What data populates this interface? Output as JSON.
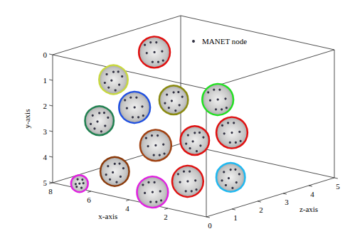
{
  "chart_data": {
    "type": "scatter",
    "x_label": "x-axis",
    "y_label": "y-axis",
    "z_label": "z-axis",
    "xlim": [
      0,
      8
    ],
    "xticks": [
      2,
      4,
      6,
      8
    ],
    "ylim": [
      0,
      5
    ],
    "yticks": [
      0,
      1,
      2,
      3,
      4,
      5
    ],
    "zlim": [
      0,
      5
    ],
    "zticks": [
      0,
      1,
      2,
      3,
      4,
      5
    ],
    "legend": "top",
    "series": [
      {
        "name": "MANET node",
        "color": "#333344",
        "marker": "circle",
        "clusters": [
          {
            "color": "#e01010",
            "z": 3,
            "center": [
              6.7,
              0.6
            ],
            "nodes": [
              [
                6.7,
                0.6
              ],
              [
                7.1,
                0.7
              ],
              [
                6.3,
                0.5
              ],
              [
                6.9,
                0.25
              ],
              [
                6.5,
                0.95
              ],
              [
                7.2,
                0.4
              ],
              [
                6.25,
                0.85
              ],
              [
                6.8,
                1.0
              ],
              [
                6.6,
                0.2
              ]
            ]
          },
          {
            "color": "#c8d840",
            "z": 2,
            "center": [
              7.5,
              1.5
            ],
            "nodes": [
              [
                7.6,
                1.55
              ],
              [
                7.2,
                1.65
              ],
              [
                7.85,
                1.35
              ],
              [
                7.5,
                1.2
              ],
              [
                7.4,
                1.9
              ],
              [
                7.95,
                1.7
              ],
              [
                7.05,
                1.3
              ],
              [
                7.75,
                1.85
              ],
              [
                7.25,
                1.15
              ]
            ]
          },
          {
            "color": "#2050e0",
            "z": 2,
            "center": [
              6.4,
              2.4
            ],
            "nodes": [
              [
                6.4,
                2.4
              ],
              [
                6.8,
                2.5
              ],
              [
                6.0,
                2.3
              ],
              [
                6.6,
                2.05
              ],
              [
                6.2,
                2.75
              ],
              [
                6.9,
                2.2
              ],
              [
                5.95,
                2.65
              ],
              [
                6.5,
                2.8
              ],
              [
                6.3,
                2.0
              ]
            ]
          },
          {
            "color": "#8a8a10",
            "z": 3,
            "center": [
              5.7,
              2.3
            ],
            "nodes": [
              [
                5.8,
                2.35
              ],
              [
                5.4,
                2.45
              ],
              [
                6.05,
                2.15
              ],
              [
                5.7,
                2.0
              ],
              [
                5.6,
                2.7
              ],
              [
                6.15,
                2.5
              ],
              [
                5.25,
                2.1
              ],
              [
                5.95,
                2.65
              ],
              [
                5.45,
                1.95
              ]
            ]
          },
          {
            "color": "#20e020",
            "z": 3,
            "center": [
              3.4,
              1.9
            ],
            "nodes": [
              [
                3.4,
                1.9
              ],
              [
                3.8,
                2.0
              ],
              [
                3.0,
                1.8
              ],
              [
                3.6,
                1.55
              ],
              [
                3.2,
                2.25
              ],
              [
                3.9,
                1.7
              ],
              [
                2.95,
                2.15
              ],
              [
                3.5,
                2.3
              ],
              [
                3.3,
                1.5
              ]
            ]
          },
          {
            "color": "#208050",
            "z": 1,
            "center": [
              6.9,
              2.7
            ],
            "nodes": [
              [
                7.0,
                2.75
              ],
              [
                6.6,
                2.85
              ],
              [
                7.25,
                2.55
              ],
              [
                6.9,
                2.4
              ],
              [
                6.8,
                3.1
              ],
              [
                7.35,
                2.9
              ],
              [
                6.45,
                2.5
              ],
              [
                7.15,
                3.05
              ],
              [
                6.65,
                2.35
              ]
            ]
          },
          {
            "color": "#a04010",
            "z": 2,
            "center": [
              5.3,
              3.7
            ],
            "nodes": [
              [
                5.3,
                3.7
              ],
              [
                5.7,
                3.8
              ],
              [
                4.9,
                3.6
              ],
              [
                5.5,
                3.35
              ],
              [
                5.1,
                4.05
              ],
              [
                5.8,
                3.5
              ],
              [
                4.85,
                3.95
              ],
              [
                5.4,
                4.1
              ],
              [
                5.2,
                3.3
              ]
            ]
          },
          {
            "color": "#e01010",
            "z": 3,
            "center": [
              4.6,
              3.7
            ],
            "nodes": [
              [
                4.7,
                3.75
              ],
              [
                4.3,
                3.85
              ],
              [
                4.95,
                3.55
              ],
              [
                4.6,
                3.4
              ],
              [
                4.5,
                4.1
              ],
              [
                5.05,
                3.9
              ],
              [
                4.15,
                3.5
              ],
              [
                4.85,
                4.05
              ],
              [
                4.35,
                3.35
              ]
            ]
          },
          {
            "color": "#e01010",
            "z": 4,
            "center": [
              4.0,
              3.6
            ],
            "nodes": [
              [
                4.0,
                3.6
              ],
              [
                4.4,
                3.7
              ],
              [
                3.6,
                3.5
              ],
              [
                4.2,
                3.25
              ],
              [
                3.8,
                3.95
              ],
              [
                4.5,
                3.4
              ],
              [
                3.55,
                3.85
              ],
              [
                4.1,
                4.0
              ],
              [
                3.9,
                3.2
              ]
            ]
          },
          {
            "color": "#8b3a0a",
            "z": 1,
            "center": [
              6.1,
              4.55
            ],
            "nodes": [
              [
                6.2,
                4.6
              ],
              [
                5.8,
                4.7
              ],
              [
                6.45,
                4.4
              ],
              [
                6.1,
                4.25
              ],
              [
                6.0,
                4.95
              ],
              [
                6.55,
                4.75
              ],
              [
                5.65,
                4.35
              ],
              [
                6.35,
                4.9
              ],
              [
                5.85,
                4.2
              ]
            ]
          },
          {
            "color": "#e01010",
            "z": 1,
            "center": [
              2.3,
              4.3
            ],
            "nodes": [
              [
                2.3,
                4.3
              ],
              [
                2.7,
                4.4
              ],
              [
                1.9,
                4.2
              ],
              [
                2.5,
                3.95
              ],
              [
                2.1,
                4.65
              ],
              [
                2.8,
                4.1
              ],
              [
                1.85,
                4.55
              ],
              [
                2.4,
                4.7
              ],
              [
                2.2,
                3.9
              ]
            ]
          },
          {
            "color": "#20b8f0",
            "z": 2,
            "center": [
              1.4,
              4.3
            ],
            "nodes": [
              [
                1.5,
                4.35
              ],
              [
                1.1,
                4.45
              ],
              [
                1.75,
                4.15
              ],
              [
                1.4,
                4.0
              ],
              [
                1.3,
                4.7
              ],
              [
                1.85,
                4.5
              ],
              [
                0.95,
                4.1
              ],
              [
                1.65,
                4.65
              ],
              [
                1.15,
                3.95
              ]
            ]
          },
          {
            "color": "#e020e0",
            "z": 0,
            "center": [
              2.8,
              4.5
            ],
            "nodes": [
              [
                2.8,
                4.5
              ],
              [
                3.2,
                4.6
              ],
              [
                2.4,
                4.4
              ],
              [
                3.0,
                4.15
              ],
              [
                2.6,
                4.85
              ],
              [
                3.3,
                4.3
              ],
              [
                2.35,
                4.75
              ],
              [
                2.9,
                4.9
              ],
              [
                2.7,
                4.1
              ]
            ]
          },
          {
            "color": "#e020e0",
            "z": 0,
            "center": [
              6.6,
              4.8
            ],
            "nodes": [
              [
                6.6,
                4.8
              ],
              [
                6.8,
                4.85
              ],
              [
                6.4,
                4.75
              ],
              [
                6.7,
                4.65
              ],
              [
                6.5,
                4.95
              ],
              [
                6.75,
                4.95
              ],
              [
                6.45,
                4.62
              ]
            ]
          }
        ]
      }
    ]
  }
}
